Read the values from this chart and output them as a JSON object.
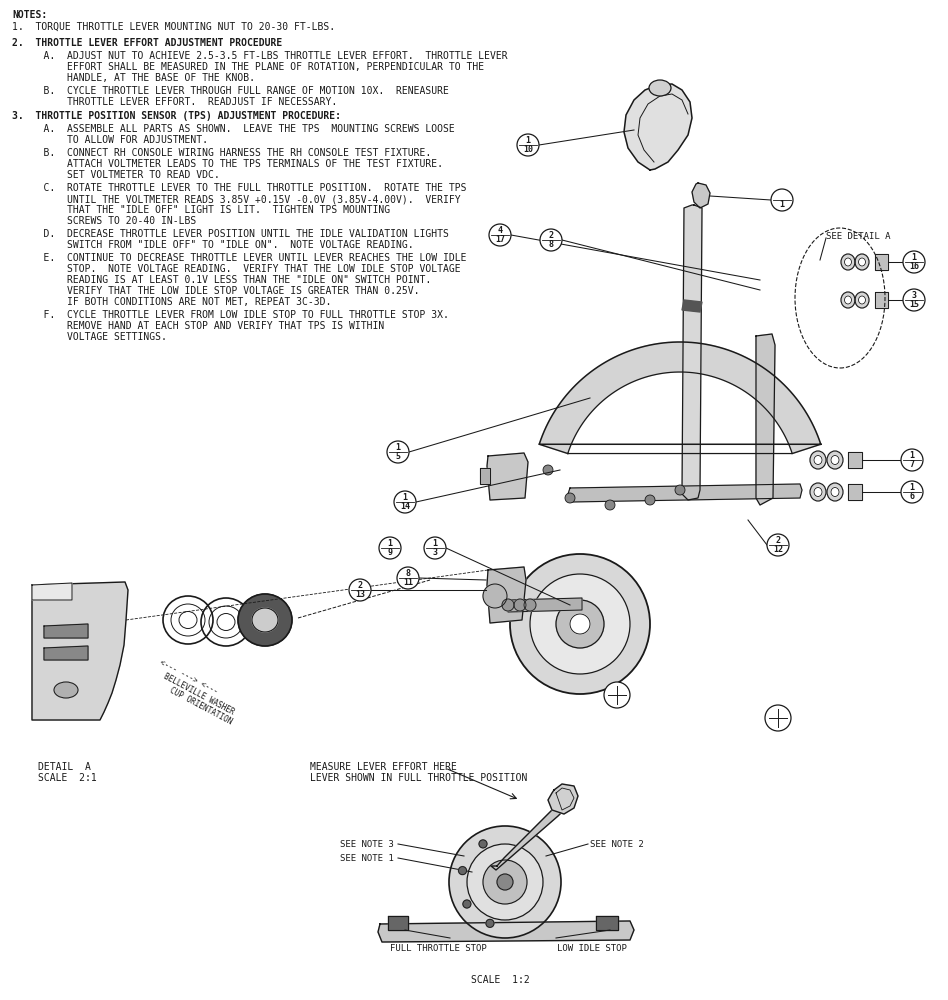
{
  "bg_color": "#ffffff",
  "line_color": "#1a1a1a",
  "text_color": "#1a1a1a",
  "notes_header": "NOTES:",
  "note1": "1.  TORQUE THROTTLE LEVER MOUNTING NUT TO 20-30 FT-LBS.",
  "note2": "2.  THROTTLE LEVER EFFORT ADJUSTMENT PROCEDURE",
  "note2a_1": "    A.  ADJUST NUT TO ACHIEVE 2.5-3.5 FT-LBS THROTTLE LEVER EFFORT.  THROTTLE LEVER",
  "note2a_2": "        EFFORT SHALL BE MEASURED IN THE PLANE OF ROTATION, PERPENDICULAR TO THE",
  "note2a_3": "        HANDLE, AT THE BASE OF THE KNOB.",
  "note2b_1": "    B.  CYCLE THROTTLE LEVER THROUGH FULL RANGE OF MOTION 10X.  RENEASURE",
  "note2b_2": "        THROTTLE LEVER EFFORT.  READJUST IF NECESSARY.",
  "note3": "3.  THROTTLE POSITION SENSOR (TPS) ADJUSTMENT PROCEDURE:",
  "note3a_1": "    A.  ASSEMBLE ALL PARTS AS SHOWN.  LEAVE THE TPS  MOUNTING SCREWS LOOSE",
  "note3a_2": "        TO ALLOW FOR ADJUSTMENT.",
  "note3b_1": "    B.  CONNECT RH CONSOLE WIRING HARNESS THE RH CONSOLE TEST FIXTURE.",
  "note3b_2": "        ATTACH VOLTMETER LEADS TO THE TPS TERMINALS OF THE TEST FIXTURE.",
  "note3b_3": "        SET VOLTMETER TO READ VDC.",
  "note3c_1": "    C.  ROTATE THROTTLE LEVER TO THE FULL THROTTLE POSITION.  ROTATE THE TPS",
  "note3c_2": "        UNTIL THE VOLTMETER READS 3.85V +0.15V -0.0V (3.85V-4.00V).  VERIFY",
  "note3c_3": "        THAT THE \"IDLE OFF\" LIGHT IS LIT.  TIGHTEN TPS MOUNTING",
  "note3c_4": "        SCREWS TO 20-40 IN-LBS",
  "note3d_1": "    D.  DECREASE THROTTLE LEVER POSITION UNTIL THE IDLE VALIDATION LIGHTS",
  "note3d_2": "        SWITCH FROM \"IDLE OFF\" TO \"IDLE ON\".  NOTE VOLTAGE READING.",
  "note3e_1": "    E.  CONTINUE TO DECREASE THROTTLE LEVER UNTIL LEVER REACHES THE LOW IDLE",
  "note3e_2": "        STOP.  NOTE VOLTAGE READING.  VERIFY THAT THE LOW IDLE STOP VOLTAGE",
  "note3e_3": "        READING IS AT LEAST 0.1V LESS THAN THE \"IDLE ON\" SWITCH POINT.",
  "note3e_4": "        VERIFY THAT THE LOW IDLE STOP VOLTAGE IS GREATER THAN 0.25V.",
  "note3e_5": "        IF BOTH CONDITIONS ARE NOT MET, REPEAT 3C-3D.",
  "note3f_1": "    F.  CYCLE THROTTLE LEVER FROM LOW IDLE STOP TO FULL THROTTLE STOP 3X.",
  "note3f_2": "        REMOVE HAND AT EACH STOP AND VERIFY THAT TPS IS WITHIN",
  "note3f_3": "        VOLTAGE SETTINGS.",
  "detail_a_line1": "DETAIL  A",
  "detail_a_line2": "SCALE  2:1",
  "measure_line1": "MEASURE LEVER EFFORT HERE",
  "measure_line2": "LEVER SHOWN IN FULL THROTTLE POSITION",
  "see_detail_a": "SEE DETAIL A",
  "belleville_line1": "<--- ---> <---",
  "belleville_line2": "BELLEVILLE WASHER",
  "belleville_line3": "CUP ORIENTATION",
  "see_note1": "SEE NOTE 1",
  "see_note2": "SEE NOTE 2",
  "see_note3": "SEE NOTE 3",
  "full_throttle_stop": "FULL THROTTLE STOP",
  "low_idle_stop": "LOW IDLE STOP",
  "scale_12": "SCALE  1:2",
  "font_notes": 7.0
}
